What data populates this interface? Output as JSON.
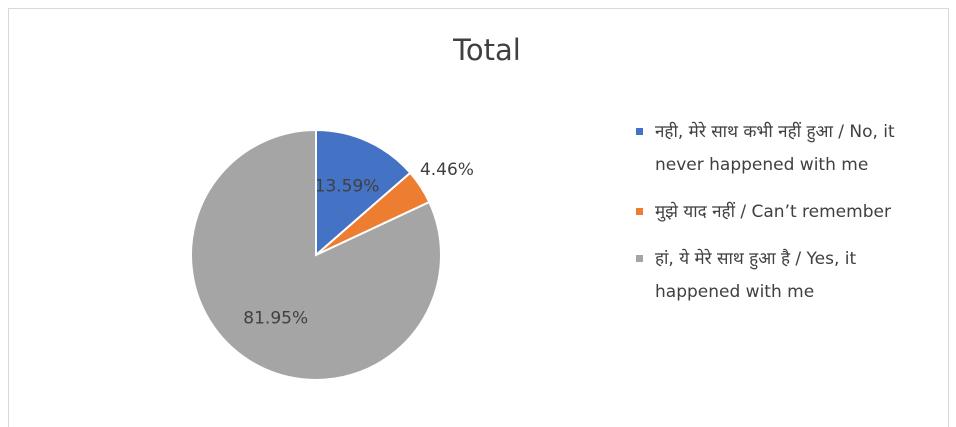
{
  "chart_data": {
    "type": "pie",
    "title": "Total",
    "categories": [
      "नही, मेरे साथ कभी नहीं हुआ / No, it never happened with me",
      "मुझे याद नहीं / Can’t remember",
      "हां, ये मेरे साथ हुआ है / Yes, it happened with me"
    ],
    "values": [
      13.59,
      4.46,
      81.95
    ],
    "value_labels": [
      "13.59%",
      "4.46%",
      "81.95%"
    ],
    "colors": [
      "#4472c4",
      "#ed7d31",
      "#a5a5a5"
    ],
    "legend": "right"
  }
}
